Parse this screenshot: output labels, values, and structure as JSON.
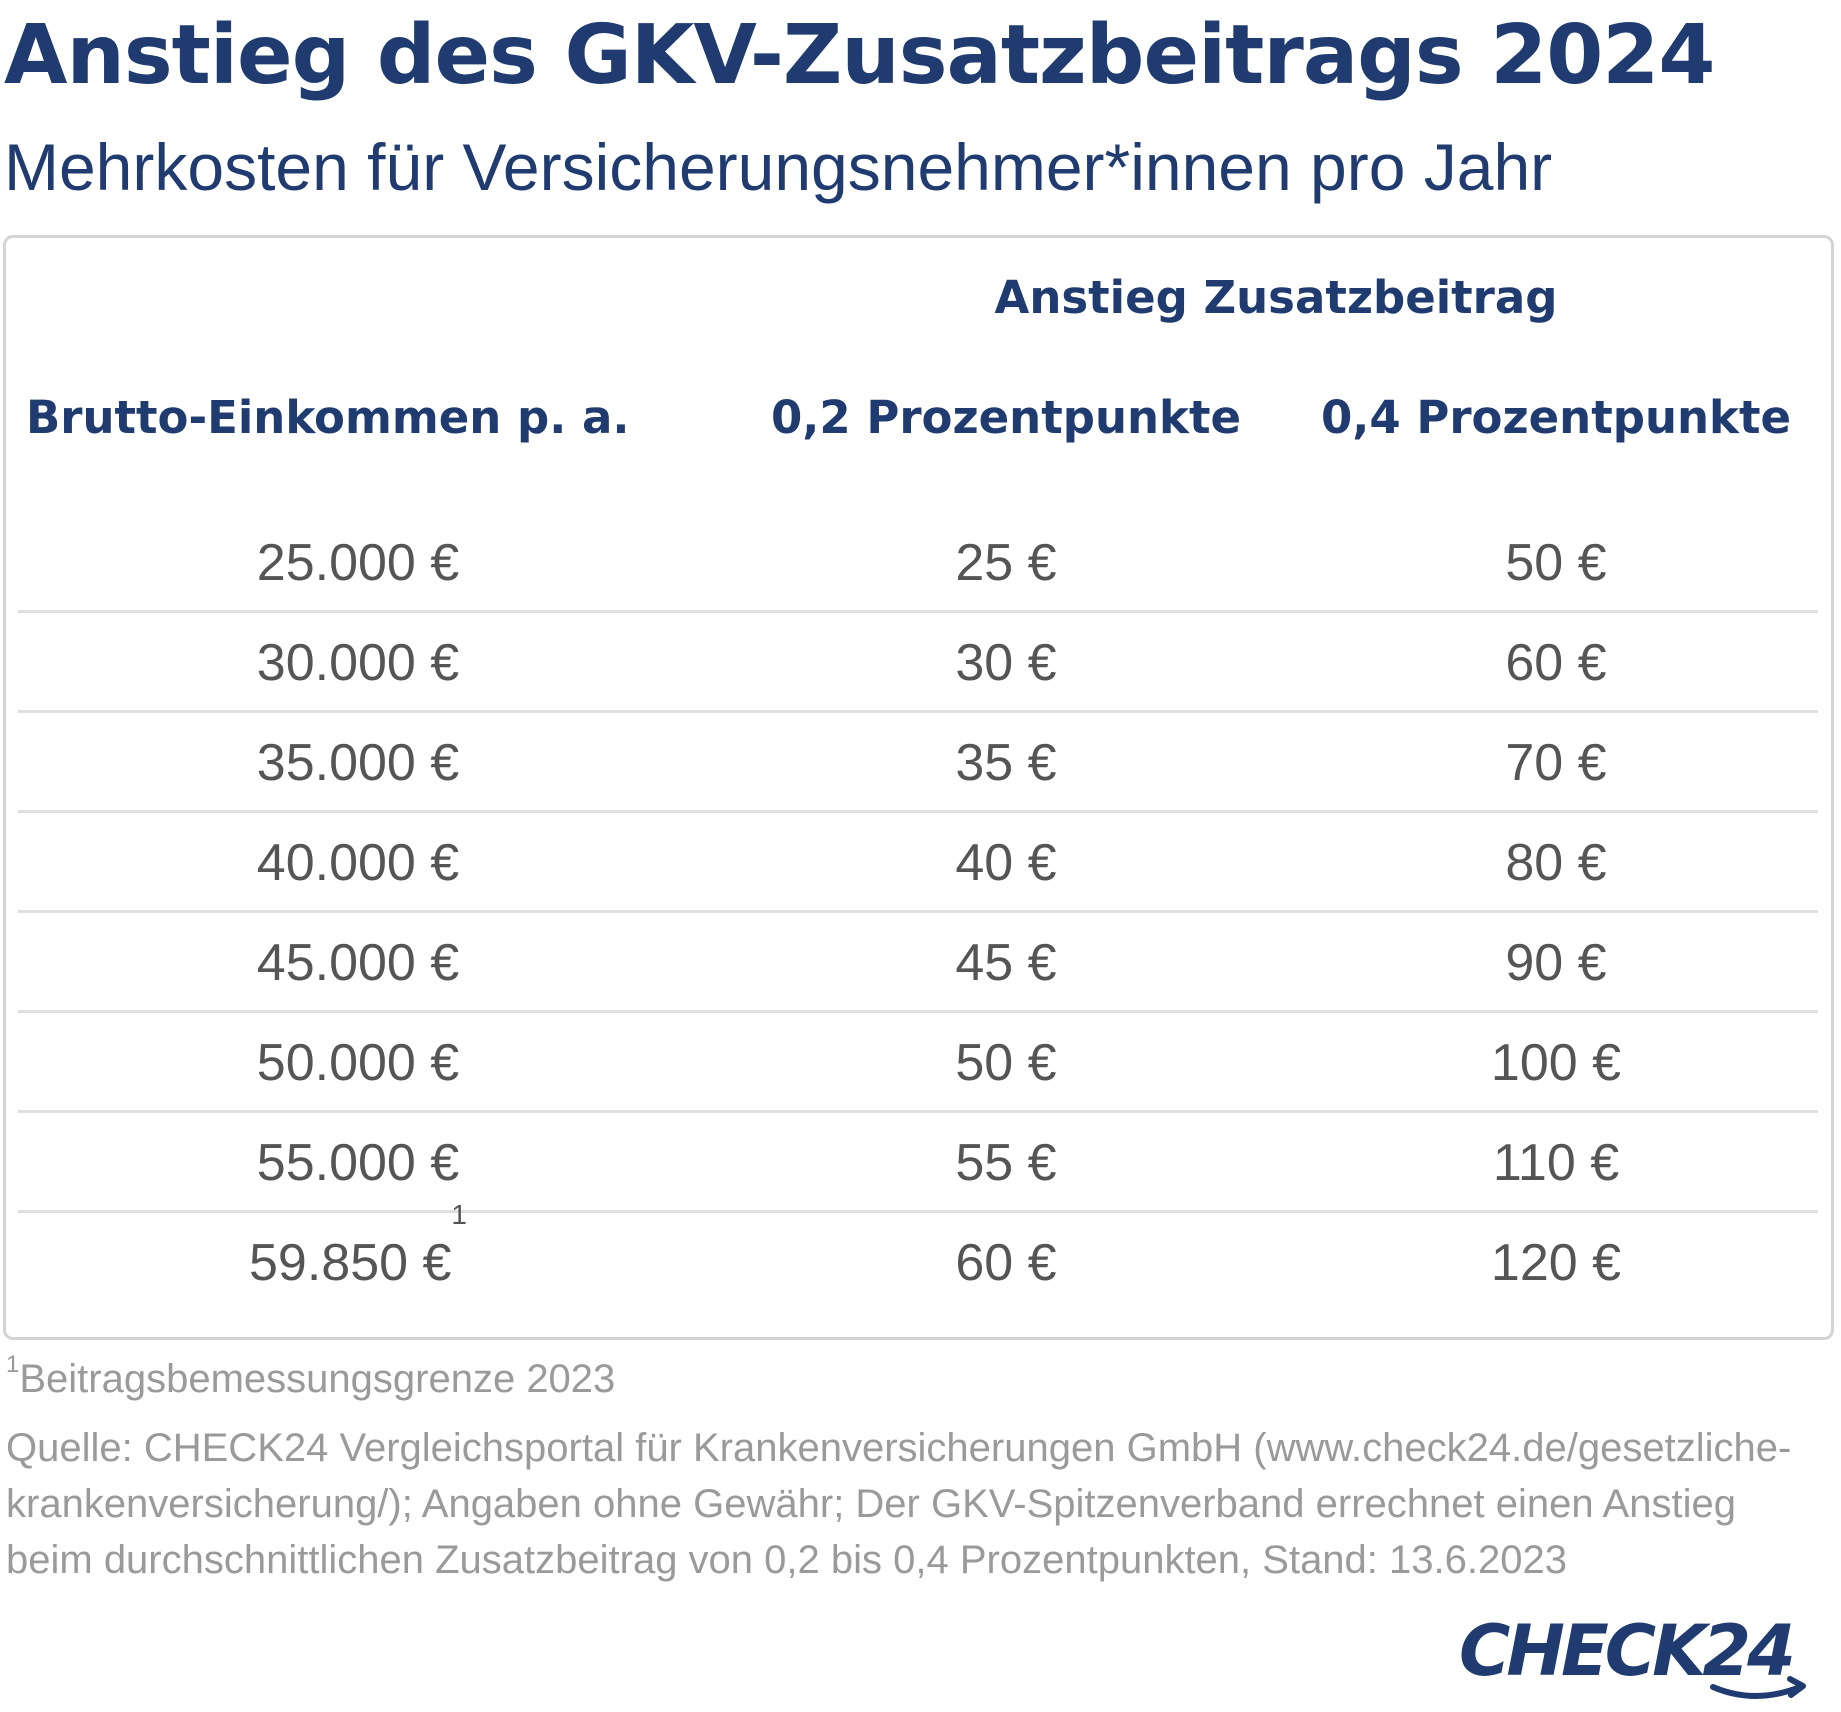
{
  "title": "Anstieg des GKV-Zusatzbeitrags 2024",
  "subtitle": "Mehrkosten für Versicherungsnehmer*innen pro Jahr",
  "table": {
    "group_header": "Anstieg Zusatzbeitrag",
    "columns": [
      "Brutto-Einkommen p. a.",
      "0,2 Prozentpunkte",
      "0,4 Prozentpunkte"
    ],
    "rows": [
      {
        "income": "25.000 €",
        "p02": "25 €",
        "p04": "50 €"
      },
      {
        "income": "30.000 €",
        "p02": "30 €",
        "p04": "60 €"
      },
      {
        "income": "35.000 €",
        "p02": "35 €",
        "p04": "70 €"
      },
      {
        "income": "40.000 €",
        "p02": "40 €",
        "p04": "80 €"
      },
      {
        "income": "45.000 €",
        "p02": "45 €",
        "p04": "90 €"
      },
      {
        "income": "50.000 €",
        "p02": "50 €",
        "p04": "100 €"
      },
      {
        "income": "55.000 €",
        "p02": "55 €",
        "p04": "110 €"
      },
      {
        "income": "59.850 €",
        "income_sup": "1",
        "p02": "60 €",
        "p04": "120 €"
      }
    ]
  },
  "footnote": {
    "marker": "1",
    "text": "Beitragsbemessungsgrenze 2023"
  },
  "source": "Quelle: CHECK24 Vergleichsportal für Krankenversicherungen GmbH (www.check24.de/gesetzliche-krankenversicherung/); Angaben ohne Gewähr; Der GKV-Spitzenverband errechnet einen Anstieg beim durchschnittlichen Zusatzbeitrag von 0,2 bis 0,4 Prozentpunkten, Stand: 13.6.2023",
  "logo": {
    "text": "CHECK24",
    "icon": "check24-logo",
    "color": "#1f3b6f"
  },
  "colors": {
    "heading": "#1f3b6f",
    "body_text": "#555555",
    "muted_text": "#9a9a9a",
    "border": "#d4d4d4"
  }
}
